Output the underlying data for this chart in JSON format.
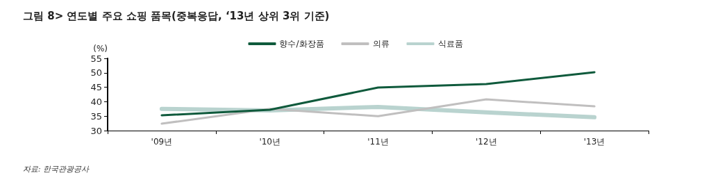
{
  "chart_data": {
    "type": "line",
    "title": "그림 8> 연도별 주요 쇼핑 품목(중복응답, ‘13년 상위 3위 기준)",
    "ylabel": "(%)",
    "categories": [
      "'09년",
      "'10년",
      "'11년",
      "'12년",
      "'13년"
    ],
    "series": [
      {
        "name": "향수/화장품",
        "color": "#0f5a3c",
        "values": [
          35.3,
          37.2,
          44.9,
          46.1,
          50.2
        ]
      },
      {
        "name": "의류",
        "color": "#c0bfbf",
        "values": [
          32.4,
          37.5,
          35,
          40.8,
          38.4
        ]
      },
      {
        "name": "식료품",
        "color": "#b9d3cf",
        "values": [
          37.5,
          37,
          38.2,
          36.3,
          34.6
        ]
      }
    ],
    "ylim": [
      30,
      55
    ],
    "yticks": [
      30,
      35,
      40,
      45,
      50,
      55
    ],
    "grid": false,
    "legend": "top",
    "marker": "none",
    "line_style": "solid",
    "annotations": [
      "자료: 한국관광공사"
    ]
  }
}
